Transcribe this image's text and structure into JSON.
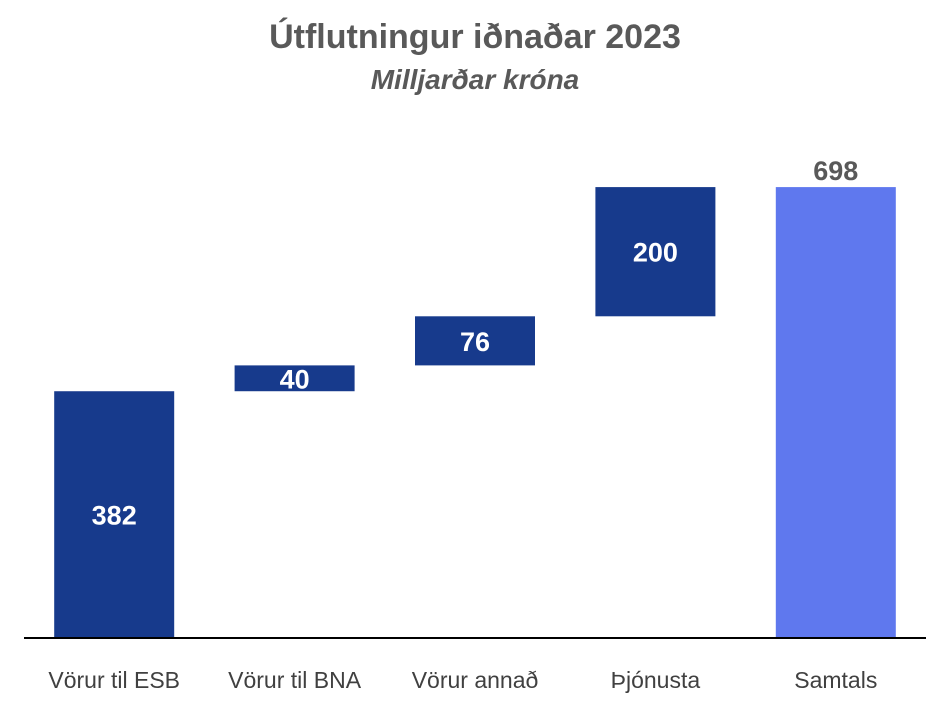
{
  "chart_data": {
    "type": "bar",
    "subtype": "waterfall",
    "title": "Útflutningur iðnaðar 2023",
    "subtitle": "Milljarðar króna",
    "categories": [
      "Vörur til ESB",
      "Vörur til BNA",
      "Vörur annað",
      "Þjónusta",
      "Samtals"
    ],
    "values": [
      382,
      40,
      76,
      200,
      698
    ],
    "data_labels": [
      "382",
      "40",
      "76",
      "200",
      "698"
    ],
    "total_index": 4,
    "ylim": [
      0,
      750
    ],
    "grid": false,
    "legend": "none",
    "colors": {
      "increment": "#173A8C",
      "total": "#5F78EE",
      "label_inside": "#FFFFFF",
      "label_outside": "#595959",
      "axis": "#000000"
    }
  }
}
